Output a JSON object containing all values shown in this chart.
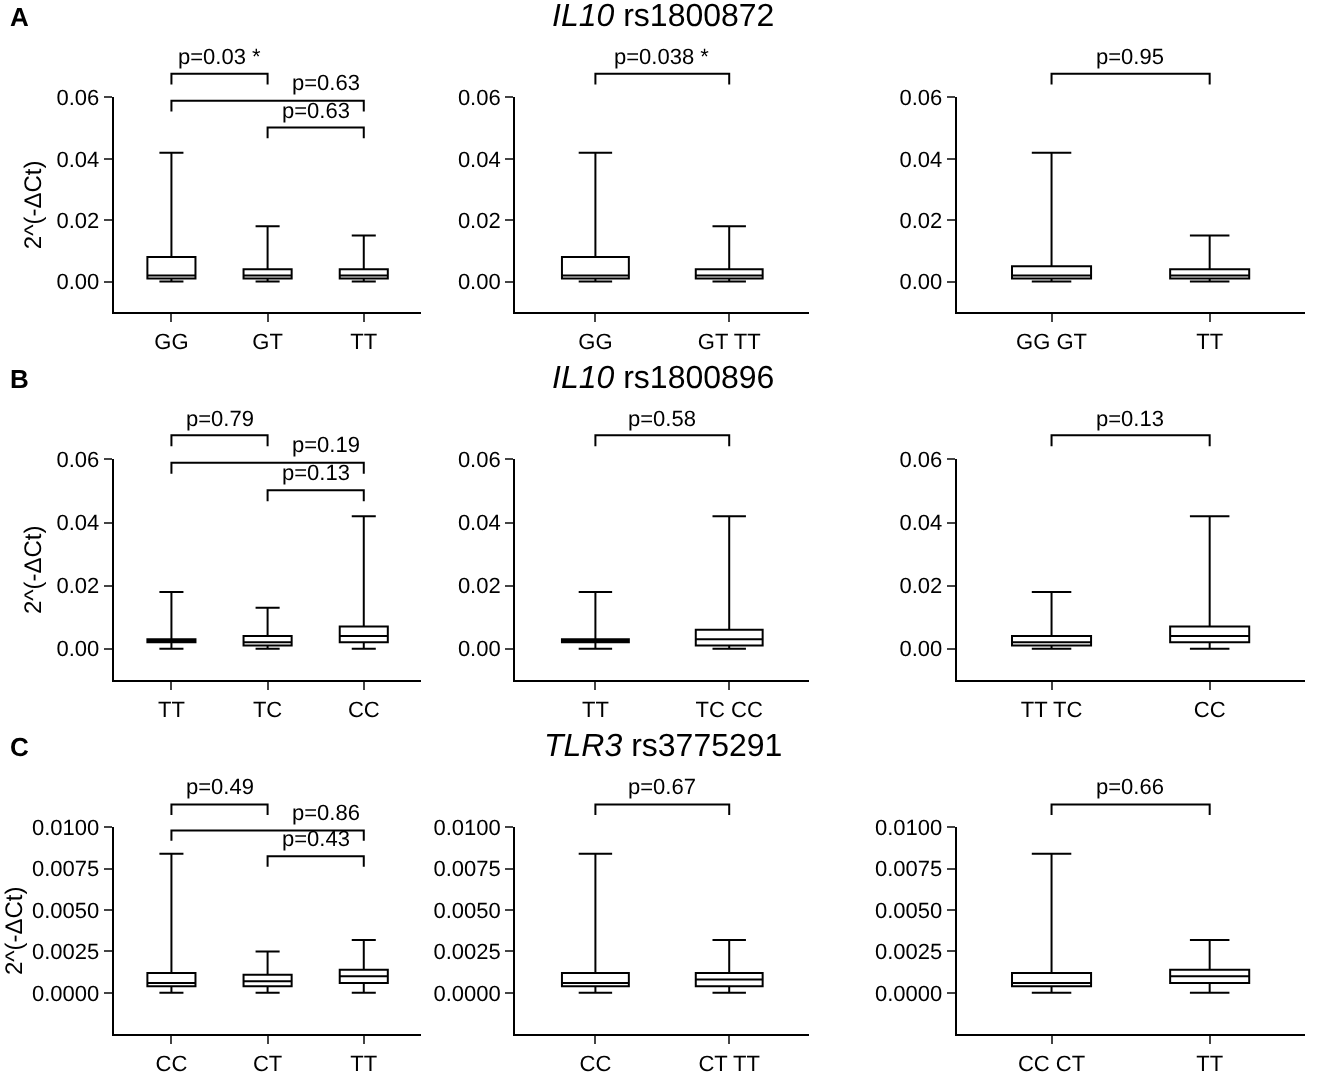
{
  "chart_data": [
    {
      "type": "box",
      "annotations": [
        "A",
        "p=0.03 *",
        "p=0.63",
        "p=0.63"
      ],
      "ylabel": "2^(-ΔCt)",
      "categories": [
        "GG",
        "GT",
        "TT"
      ],
      "ylim": [
        -0.01,
        0.06
      ],
      "yticks": [
        {
          "value": 0,
          "label": "0.00"
        },
        {
          "value": 0.02,
          "label": "0.02"
        },
        {
          "value": 0.04,
          "label": "0.04"
        },
        {
          "value": 0.06,
          "label": "0.06"
        }
      ],
      "boxes": [
        {
          "low": 0.0,
          "q1": 0.001,
          "median": 0.002,
          "q3": 0.008,
          "high": 0.042
        },
        {
          "low": 0.0,
          "q1": 0.001,
          "median": 0.002,
          "q3": 0.004,
          "high": 0.018
        },
        {
          "low": 0.0,
          "q1": 0.001,
          "median": 0.002,
          "q3": 0.004,
          "high": 0.015
        }
      ]
    },
    {
      "type": "box",
      "title": "IL10 rs1800872",
      "annotations": [
        "p=0.038 *"
      ],
      "categories": [
        "GG",
        "GT TT"
      ],
      "ylim": [
        -0.01,
        0.06
      ],
      "yticks": [
        {
          "value": 0,
          "label": "0.00"
        },
        {
          "value": 0.02,
          "label": "0.02"
        },
        {
          "value": 0.04,
          "label": "0.04"
        },
        {
          "value": 0.06,
          "label": "0.06"
        }
      ],
      "boxes": [
        {
          "low": 0.0,
          "q1": 0.001,
          "median": 0.002,
          "q3": 0.008,
          "high": 0.042
        },
        {
          "low": 0.0,
          "q1": 0.001,
          "median": 0.002,
          "q3": 0.004,
          "high": 0.018
        }
      ]
    },
    {
      "type": "box",
      "annotations": [
        "p=0.95"
      ],
      "categories": [
        "GG GT",
        "TT"
      ],
      "ylim": [
        -0.01,
        0.06
      ],
      "yticks": [
        {
          "value": 0,
          "label": "0.00"
        },
        {
          "value": 0.02,
          "label": "0.02"
        },
        {
          "value": 0.04,
          "label": "0.04"
        },
        {
          "value": 0.06,
          "label": "0.06"
        }
      ],
      "boxes": [
        {
          "low": 0.0,
          "q1": 0.001,
          "median": 0.002,
          "q3": 0.005,
          "high": 0.042
        },
        {
          "low": 0.0,
          "q1": 0.001,
          "median": 0.002,
          "q3": 0.004,
          "high": 0.015
        }
      ]
    },
    {
      "type": "box",
      "annotations": [
        "B",
        "p=0.79",
        "p=0.19",
        "p=0.13"
      ],
      "ylabel": "2^(-ΔCt)",
      "categories": [
        "TT",
        "TC",
        "CC"
      ],
      "ylim": [
        -0.01,
        0.06
      ],
      "yticks": [
        {
          "value": 0,
          "label": "0.00"
        },
        {
          "value": 0.02,
          "label": "0.02"
        },
        {
          "value": 0.04,
          "label": "0.04"
        },
        {
          "value": 0.06,
          "label": "0.06"
        }
      ],
      "boxes": [
        {
          "low": 0.0,
          "q1": 0.002,
          "median": 0.002,
          "q3": 0.003,
          "high": 0.018
        },
        {
          "low": 0.0,
          "q1": 0.001,
          "median": 0.002,
          "q3": 0.004,
          "high": 0.013
        },
        {
          "low": 0.0,
          "q1": 0.002,
          "median": 0.004,
          "q3": 0.007,
          "high": 0.042
        }
      ]
    },
    {
      "type": "box",
      "title": "IL10 rs1800896",
      "annotations": [
        "p=0.58"
      ],
      "categories": [
        "TT",
        "TC CC"
      ],
      "ylim": [
        -0.01,
        0.06
      ],
      "yticks": [
        {
          "value": 0,
          "label": "0.00"
        },
        {
          "value": 0.02,
          "label": "0.02"
        },
        {
          "value": 0.04,
          "label": "0.04"
        },
        {
          "value": 0.06,
          "label": "0.06"
        }
      ],
      "boxes": [
        {
          "low": 0.0,
          "q1": 0.002,
          "median": 0.002,
          "q3": 0.003,
          "high": 0.018
        },
        {
          "low": 0.0,
          "q1": 0.001,
          "median": 0.003,
          "q3": 0.006,
          "high": 0.042
        }
      ]
    },
    {
      "type": "box",
      "annotations": [
        "p=0.13"
      ],
      "categories": [
        "TT TC",
        "CC"
      ],
      "ylim": [
        -0.01,
        0.06
      ],
      "yticks": [
        {
          "value": 0,
          "label": "0.00"
        },
        {
          "value": 0.02,
          "label": "0.02"
        },
        {
          "value": 0.04,
          "label": "0.04"
        },
        {
          "value": 0.06,
          "label": "0.06"
        }
      ],
      "boxes": [
        {
          "low": 0.0,
          "q1": 0.001,
          "median": 0.002,
          "q3": 0.004,
          "high": 0.018
        },
        {
          "low": 0.0,
          "q1": 0.002,
          "median": 0.004,
          "q3": 0.007,
          "high": 0.042
        }
      ]
    },
    {
      "type": "box",
      "annotations": [
        "C",
        "p=0.49",
        "p=0.86",
        "p=0.43"
      ],
      "ylabel": "2^(-ΔCt)",
      "categories": [
        "CC",
        "CT",
        "TT"
      ],
      "ylim": [
        -0.0025,
        0.01
      ],
      "yticks": [
        {
          "value": 0,
          "label": "0.0000"
        },
        {
          "value": 0.0025,
          "label": "0.0025"
        },
        {
          "value": 0.005,
          "label": "0.0050"
        },
        {
          "value": 0.0075,
          "label": "0.0075"
        },
        {
          "value": 0.01,
          "label": "0.0100"
        }
      ],
      "boxes": [
        {
          "low": 0.0,
          "q1": 0.0004,
          "median": 0.0006,
          "q3": 0.0012,
          "high": 0.0084
        },
        {
          "low": 0.0,
          "q1": 0.0004,
          "median": 0.0007,
          "q3": 0.0011,
          "high": 0.0025
        },
        {
          "low": 0.0,
          "q1": 0.0006,
          "median": 0.001,
          "q3": 0.0014,
          "high": 0.0032
        }
      ]
    },
    {
      "type": "box",
      "title": "TLR3 rs3775291",
      "annotations": [
        "p=0.67"
      ],
      "categories": [
        "CC",
        "CT TT"
      ],
      "ylim": [
        -0.0025,
        0.01
      ],
      "yticks": [
        {
          "value": 0,
          "label": "0.0000"
        },
        {
          "value": 0.0025,
          "label": "0.0025"
        },
        {
          "value": 0.005,
          "label": "0.0050"
        },
        {
          "value": 0.0075,
          "label": "0.0075"
        },
        {
          "value": 0.01,
          "label": "0.0100"
        }
      ],
      "boxes": [
        {
          "low": 0.0,
          "q1": 0.0004,
          "median": 0.0006,
          "q3": 0.0012,
          "high": 0.0084
        },
        {
          "low": 0.0,
          "q1": 0.0004,
          "median": 0.0008,
          "q3": 0.0012,
          "high": 0.0032
        }
      ]
    },
    {
      "type": "box",
      "annotations": [
        "p=0.66"
      ],
      "categories": [
        "CC CT",
        "TT"
      ],
      "ylim": [
        -0.0025,
        0.01
      ],
      "yticks": [
        {
          "value": 0,
          "label": "0.0000"
        },
        {
          "value": 0.0025,
          "label": "0.0025"
        },
        {
          "value": 0.005,
          "label": "0.0050"
        },
        {
          "value": 0.0075,
          "label": "0.0075"
        },
        {
          "value": 0.01,
          "label": "0.0100"
        }
      ],
      "boxes": [
        {
          "low": 0.0,
          "q1": 0.0004,
          "median": 0.0006,
          "q3": 0.0012,
          "high": 0.0084
        },
        {
          "low": 0.0,
          "q1": 0.0006,
          "median": 0.001,
          "q3": 0.0014,
          "high": 0.0032
        }
      ]
    }
  ]
}
